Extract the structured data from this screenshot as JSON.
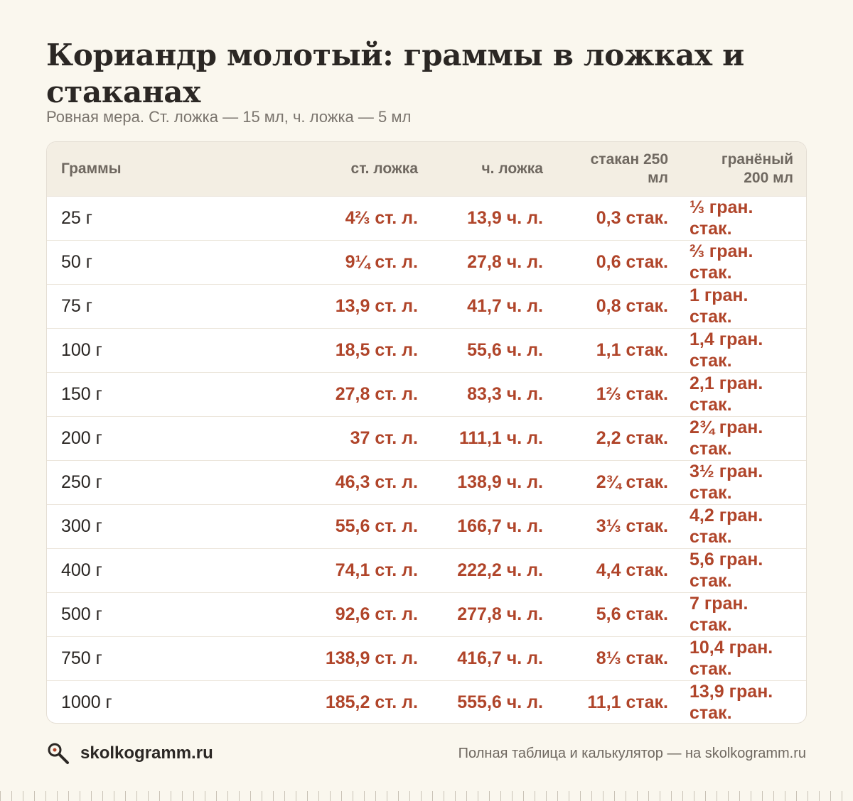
{
  "title": "Кориандр молотый: граммы в ложках и стаканах",
  "subtitle": "Ровная мера. Ст. ложка — 15 мл, ч. ложка — 5 мл",
  "table": {
    "headers": [
      "Граммы",
      "ст. ложка",
      "ч. ложка",
      "стакан 250 мл",
      "гранёный 200 мл"
    ],
    "rows": [
      [
        "25 г",
        "4⅔ ст. л.",
        "13,9 ч. л.",
        "0,3 стак.",
        "⅓ гран. стак."
      ],
      [
        "50 г",
        "9¼ ст. л.",
        "27,8 ч. л.",
        "0,6 стак.",
        "⅔ гран. стак."
      ],
      [
        "75 г",
        "13,9 ст. л.",
        "41,7 ч. л.",
        "0,8 стак.",
        "1 гран. стак."
      ],
      [
        "100 г",
        "18,5 ст. л.",
        "55,6 ч. л.",
        "1,1 стак.",
        "1,4 гран. стак."
      ],
      [
        "150 г",
        "27,8 ст. л.",
        "83,3 ч. л.",
        "1⅔ стак.",
        "2,1 гран. стак."
      ],
      [
        "200 г",
        "37 ст. л.",
        "111,1 ч. л.",
        "2,2 стак.",
        "2¾ гран. стак."
      ],
      [
        "250 г",
        "46,3 ст. л.",
        "138,9 ч. л.",
        "2¾ стак.",
        "3½ гран. стак."
      ],
      [
        "300 г",
        "55,6 ст. л.",
        "166,7 ч. л.",
        "3⅓ стак.",
        "4,2 гран. стак."
      ],
      [
        "400 г",
        "74,1 ст. л.",
        "222,2 ч. л.",
        "4,4 стак.",
        "5,6 гран. стак."
      ],
      [
        "500 г",
        "92,6 ст. л.",
        "277,8 ч. л.",
        "5,6 стак.",
        "7 гран. стак."
      ],
      [
        "750 г",
        "138,9 ст. л.",
        "416,7 ч. л.",
        "8⅓ стак.",
        "10,4 гран. стак."
      ],
      [
        "1000 г",
        "185,2 ст. л.",
        "555,6 ч. л.",
        "11,1 стак.",
        "13,9 гран. стак."
      ]
    ]
  },
  "footer": {
    "brand": "skolkogramm.ru",
    "brand_icon": "magnifier-icon",
    "note": "Полная таблица и калькулятор — на skolkogramm.ru"
  },
  "colors": {
    "background": "#faf7ee",
    "accent": "#b0452a",
    "header_bg": "#f3eee3"
  }
}
